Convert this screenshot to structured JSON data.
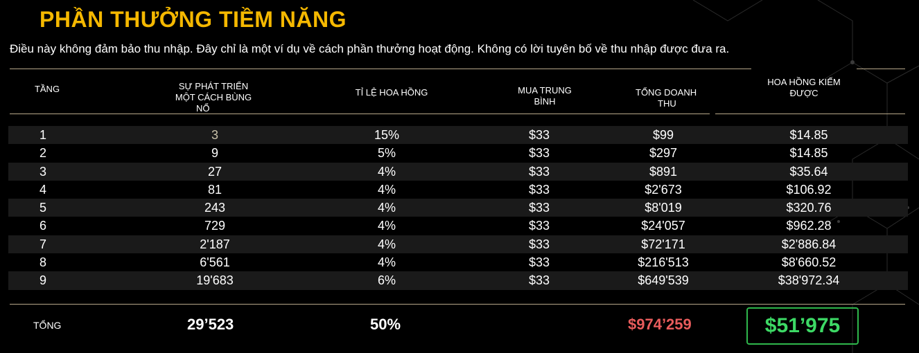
{
  "header": {
    "title": "PHẦN THƯỞNG TIỀM NĂNG",
    "disclaimer": "Điều này không đảm bảo thu nhập. Đây chỉ là một ví dụ về cách phần thưởng hoạt động. Không có lời tuyên bố về thu nhập được đưa ra."
  },
  "table": {
    "columns": {
      "level": "TẦNG",
      "growth_line1": "SỰ PHÁT TRIỂN",
      "growth_line2": "MỘT CÁCH BÙNG",
      "growth_line3": "NỔ",
      "commission_rate": "TỈ LỆ HOA HỒNG",
      "avg_purchase_line1": "MUA TRUNG",
      "avg_purchase_line2": "BÌNH",
      "total_revenue_line1": "TỔNG DOANH",
      "total_revenue_line2": "THU",
      "commission_earned_line1": "HOA HỒNG KIẾM",
      "commission_earned_line2": "ĐƯỢC"
    },
    "rows": [
      {
        "level": "1",
        "growth": "3",
        "rate": "15%",
        "avg": "$33",
        "revenue": "$99",
        "earned": "$14.85"
      },
      {
        "level": "2",
        "growth": "9",
        "rate": "5%",
        "avg": "$33",
        "revenue": "$297",
        "earned": "$14.85"
      },
      {
        "level": "3",
        "growth": "27",
        "rate": "4%",
        "avg": "$33",
        "revenue": "$891",
        "earned": "$35.64"
      },
      {
        "level": "4",
        "growth": "81",
        "rate": "4%",
        "avg": "$33",
        "revenue": "$2'673",
        "earned": "$106.92"
      },
      {
        "level": "5",
        "growth": "243",
        "rate": "4%",
        "avg": "$33",
        "revenue": "$8'019",
        "earned": "$320.76"
      },
      {
        "level": "6",
        "growth": "729",
        "rate": "4%",
        "avg": "$33",
        "revenue": "$24'057",
        "earned": "$962.28"
      },
      {
        "level": "7",
        "growth": "2'187",
        "rate": "4%",
        "avg": "$33",
        "revenue": "$72'171",
        "earned": "$2'886.84"
      },
      {
        "level": "8",
        "growth": "6'561",
        "rate": "4%",
        "avg": "$33",
        "revenue": "$216'513",
        "earned": "$8'660.52"
      },
      {
        "level": "9",
        "growth": "19'683",
        "rate": "6%",
        "avg": "$33",
        "revenue": "$649'539",
        "earned": "$38'972.34"
      }
    ],
    "totals": {
      "label": "TỔNG",
      "growth": "29’523",
      "rate": "50%",
      "revenue": "$974’259",
      "earned": "$51’975"
    }
  },
  "colors": {
    "title": "#f5b800",
    "revenue_total": "#e85c5c",
    "earned_total": "#3dd965",
    "row_shade": "#1a1a1a"
  }
}
